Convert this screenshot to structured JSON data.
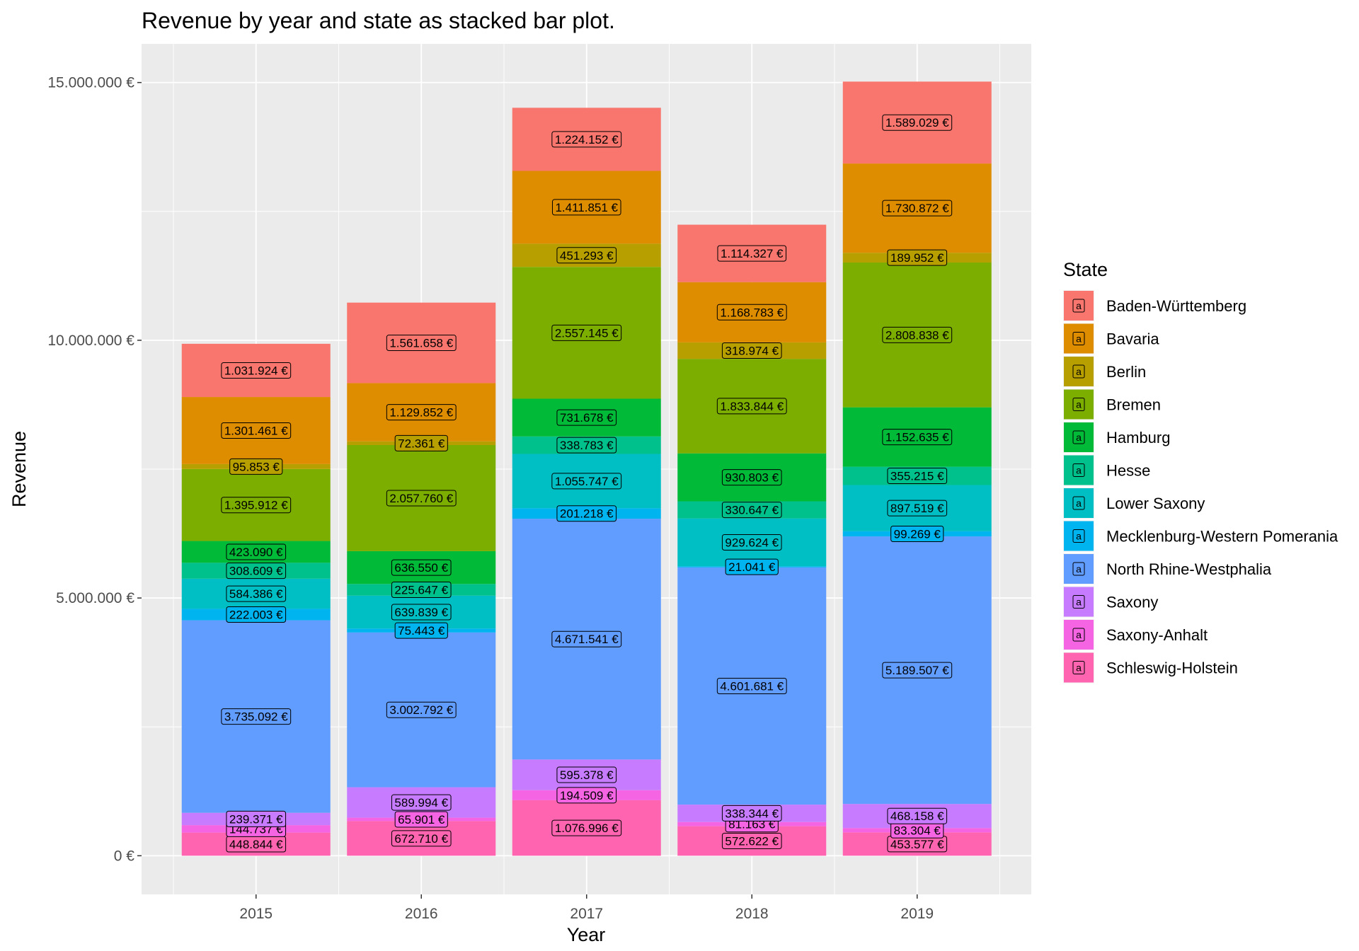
{
  "chart_data": {
    "type": "bar",
    "stacked": true,
    "title": "Revenue by year and state as stacked bar plot.",
    "xlabel": "Year",
    "ylabel": "Revenue",
    "ylim": [
      -750000,
      15750000
    ],
    "y_ticks": [
      0,
      5000000,
      10000000,
      15000000
    ],
    "y_tick_labels": [
      "0 €",
      "5.000.000 €",
      "10.000.000 €",
      "15.000.000 €"
    ],
    "categories": [
      "2015",
      "2016",
      "2017",
      "2018",
      "2019"
    ],
    "legend": {
      "title": "State",
      "position": "right",
      "key_glyph": "a"
    },
    "grid": true,
    "series": [
      {
        "name": "Baden-Württemberg",
        "color": "#F8766D",
        "values": [
          1031924,
          1561658,
          1224152,
          1114327,
          1589029
        ],
        "labels": [
          "1.031.924 €",
          "1.561.658 €",
          "1.224.152 €",
          "1.114.327 €",
          "1.589.029 €"
        ]
      },
      {
        "name": "Bavaria",
        "color": "#DE8C00",
        "values": [
          1301461,
          1129852,
          1411851,
          1168783,
          1730872
        ],
        "labels": [
          "1.301.461 €",
          "1.129.852 €",
          "1.411.851 €",
          "1.168.783 €",
          "1.730.872 €"
        ]
      },
      {
        "name": "Berlin",
        "color": "#B79F00",
        "values": [
          95853,
          72361,
          451293,
          318974,
          189952
        ],
        "labels": [
          "95.853 €",
          "72.361 €",
          "451.293 €",
          "318.974 €",
          "189.952 €"
        ]
      },
      {
        "name": "Bremen",
        "color": "#7CAE00",
        "values": [
          1395912,
          2057760,
          2557145,
          1833844,
          2808838
        ],
        "labels": [
          "1.395.912 €",
          "2.057.760 €",
          "2.557.145 €",
          "1.833.844 €",
          "2.808.838 €"
        ]
      },
      {
        "name": "Hamburg",
        "color": "#00BA38",
        "values": [
          423090,
          636550,
          731678,
          930803,
          1152635
        ],
        "labels": [
          "423.090 €",
          "636.550 €",
          "731.678 €",
          "930.803 €",
          "1.152.635 €"
        ]
      },
      {
        "name": "Hesse",
        "color": "#00C08B",
        "values": [
          308609,
          225647,
          338783,
          330647,
          355215
        ],
        "labels": [
          "308.609 €",
          "225.647 €",
          "338.783 €",
          "330.647 €",
          "355.215 €"
        ]
      },
      {
        "name": "Lower Saxony",
        "color": "#00BFC4",
        "values": [
          584386,
          639839,
          1055747,
          929624,
          897519
        ],
        "labels": [
          "584.386 €",
          "639.839 €",
          "1.055.747 €",
          "929.624 €",
          "897.519 €"
        ]
      },
      {
        "name": "Mecklenburg-Western Pomerania",
        "color": "#00B4F0",
        "values": [
          222003,
          75443,
          201218,
          21041,
          99269
        ],
        "labels": [
          "222.003 €",
          "75.443 €",
          "201.218 €",
          "21.041 €",
          "99.269 €"
        ]
      },
      {
        "name": "North Rhine-Westphalia",
        "color": "#619CFF",
        "values": [
          3735092,
          3002792,
          4671541,
          4601681,
          5189507
        ],
        "labels": [
          "3.735.092 €",
          "3.002.792 €",
          "4.671.541 €",
          "4.601.681 €",
          "5.189.507 €"
        ]
      },
      {
        "name": "Saxony",
        "color": "#C77CFF",
        "values": [
          239371,
          589994,
          595378,
          338344,
          468158
        ],
        "labels": [
          "239.371 €",
          "589.994 €",
          "595.378 €",
          "338.344 €",
          "468.158 €"
        ]
      },
      {
        "name": "Saxony-Anhalt",
        "color": "#F564E3",
        "values": [
          144737,
          65901,
          194509,
          81163,
          83304
        ],
        "labels": [
          "144.737 €",
          "65.901 €",
          "194.509 €",
          "81.163 €",
          "83.304 €"
        ]
      },
      {
        "name": "Schleswig-Holstein",
        "color": "#FF64B0",
        "values": [
          448844,
          672710,
          1076996,
          572622,
          453577
        ],
        "labels": [
          "448.844 €",
          "672.710 €",
          "1.076.996 €",
          "572.622 €",
          "453.577 €"
        ]
      }
    ]
  }
}
